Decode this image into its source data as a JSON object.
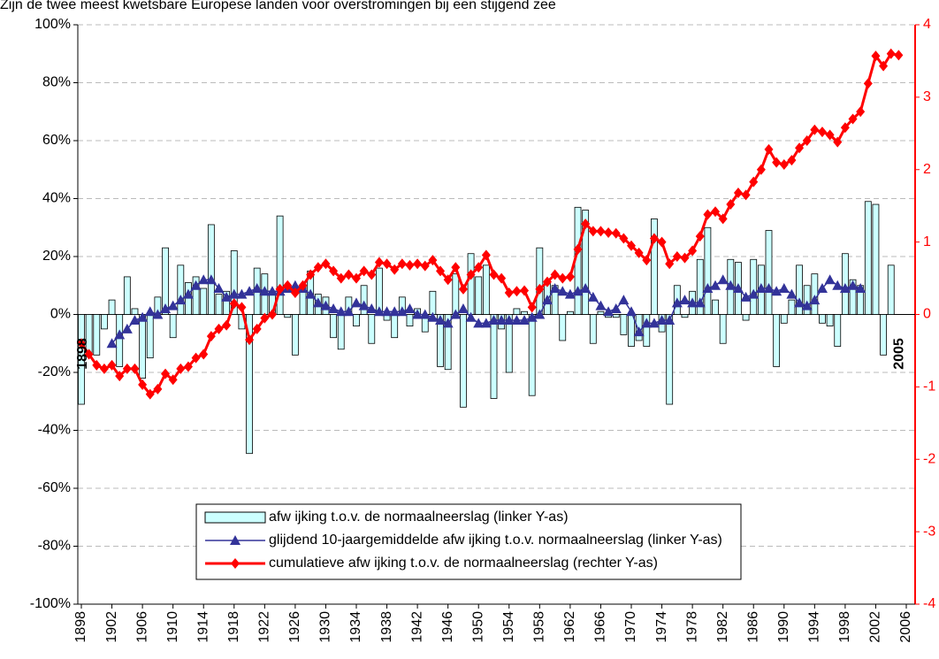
{
  "chart_data": {
    "type": "bar-line",
    "title": "Zijn de twee meest kwetsbare Europese landen voor overstromingen bij een stijgend zee",
    "annotations": [
      "1898",
      "2005"
    ],
    "categories": [
      "1898",
      null,
      null,
      null,
      "1902",
      null,
      null,
      null,
      "1906",
      null,
      null,
      null,
      "1910",
      null,
      null,
      null,
      "1914",
      null,
      null,
      null,
      "1918",
      null,
      null,
      null,
      "1922",
      null,
      null,
      null,
      "1926",
      null,
      null,
      null,
      "1930",
      null,
      null,
      null,
      "1934",
      null,
      null,
      null,
      "1938",
      null,
      null,
      null,
      "1942",
      null,
      null,
      null,
      "1946",
      null,
      null,
      null,
      "1950",
      null,
      null,
      null,
      "1954",
      null,
      null,
      null,
      "1958",
      null,
      null,
      null,
      "1962",
      null,
      null,
      null,
      "1966",
      null,
      null,
      null,
      "1970",
      null,
      null,
      null,
      "1974",
      null,
      null,
      null,
      "1978",
      null,
      null,
      null,
      "1982",
      null,
      null,
      null,
      "1986",
      null,
      null,
      null,
      "1990",
      null,
      null,
      null,
      "1994",
      null,
      null,
      null,
      "1998",
      null,
      null,
      null,
      "2002",
      null,
      null,
      null,
      "2006"
    ],
    "series": [
      {
        "name": "afw ijking t.o.v. de normaalneerslag (linker Y-as)",
        "type": "bar",
        "color": "#ccffff",
        "axis": "y",
        "values": [
          -31,
          -14,
          -14,
          -5,
          5,
          -18,
          13,
          2,
          -22,
          -15,
          6,
          23,
          -8,
          17,
          11,
          13,
          9,
          31,
          7,
          8,
          22,
          -5,
          -48,
          16,
          14,
          8,
          34,
          -1,
          -14,
          10,
          15,
          7,
          6,
          -8,
          -12,
          6,
          -4,
          10,
          -10,
          16,
          -2,
          -8,
          6,
          -4,
          2,
          -6,
          8,
          -18,
          -19,
          14,
          -32,
          21,
          13,
          17,
          -29,
          -5,
          -20,
          2,
          1,
          -28,
          23,
          11,
          10,
          -9,
          1,
          37,
          36,
          -10,
          1,
          -1,
          -1,
          -7,
          -11,
          -9,
          -11,
          33,
          -6,
          -31,
          10,
          -1,
          8,
          19,
          30,
          5,
          -10,
          19,
          18,
          -2,
          19,
          17,
          29,
          -18,
          -3,
          5,
          17,
          10,
          14,
          -3,
          -4,
          -11,
          21,
          12,
          10,
          39,
          38,
          -14,
          17,
          null,
          null
        ]
      },
      {
        "name": "glijdend 10-jaargemiddelde afw ijking t.o.v. normaalneerslag (linker Y-as)",
        "type": "line",
        "marker": "triangle",
        "color": "#333399",
        "axis": "y",
        "values": [
          null,
          null,
          null,
          null,
          -10,
          -7,
          -5,
          -2,
          -1,
          1,
          0,
          2,
          3,
          5,
          7,
          10,
          12,
          12,
          9,
          6,
          7,
          7,
          8,
          9,
          8,
          8,
          8,
          9,
          10,
          9,
          7,
          4,
          3,
          2,
          1,
          1,
          4,
          3,
          2,
          1,
          1,
          1,
          1,
          2,
          0,
          0,
          -1,
          -2,
          -3,
          0,
          2,
          -1,
          -3,
          -3,
          -2,
          -2,
          -2,
          -2,
          -2,
          -1,
          0,
          5,
          9,
          8,
          7,
          8,
          9,
          6,
          3,
          1,
          2,
          5,
          1,
          -6,
          -3,
          -3,
          -2,
          -2,
          4,
          5,
          4,
          4,
          9,
          10,
          12,
          10,
          9,
          6,
          7,
          9,
          9,
          8,
          9,
          7,
          4,
          3,
          5,
          9,
          12,
          10,
          9,
          10,
          9,
          null,
          null,
          null,
          null,
          null,
          null
        ]
      },
      {
        "name": "cumulatieve afw ijking t.o.v. de normaalneerslag (rechter Y-as)",
        "type": "line",
        "marker": "diamond",
        "color": "#ff0000",
        "axis": "y2",
        "values": [
          -0.4,
          -0.55,
          -0.7,
          -0.75,
          -0.7,
          -0.85,
          -0.75,
          -0.75,
          -0.97,
          -1.1,
          -1.03,
          -0.82,
          -0.9,
          -0.75,
          -0.72,
          -0.6,
          -0.55,
          -0.3,
          -0.2,
          -0.15,
          0.15,
          0.1,
          -0.35,
          -0.2,
          -0.05,
          0.0,
          0.35,
          0.4,
          0.3,
          0.4,
          0.55,
          0.65,
          0.7,
          0.6,
          0.5,
          0.55,
          0.5,
          0.6,
          0.55,
          0.72,
          0.7,
          0.62,
          0.7,
          0.68,
          0.7,
          0.67,
          0.75,
          0.6,
          0.48,
          0.65,
          0.35,
          0.55,
          0.65,
          0.82,
          0.55,
          0.5,
          0.3,
          0.32,
          0.33,
          0.1,
          0.35,
          0.45,
          0.55,
          0.5,
          0.52,
          0.9,
          1.25,
          1.15,
          1.15,
          1.13,
          1.12,
          1.05,
          0.95,
          0.85,
          0.75,
          1.05,
          1.0,
          0.7,
          0.8,
          0.78,
          0.88,
          1.08,
          1.38,
          1.42,
          1.32,
          1.52,
          1.68,
          1.65,
          1.83,
          2.0,
          2.28,
          2.1,
          2.07,
          2.13,
          2.3,
          2.4,
          2.55,
          2.52,
          2.48,
          2.38,
          2.58,
          2.7,
          2.8,
          3.19,
          3.57,
          3.43,
          3.6,
          3.58,
          null
        ]
      }
    ],
    "ylim": [
      -100,
      100
    ],
    "yticks": [
      {
        "value": -100,
        "label": "-100%"
      },
      {
        "value": -80,
        "label": "-80%"
      },
      {
        "value": -60,
        "label": "-60%"
      },
      {
        "value": -40,
        "label": "-40%"
      },
      {
        "value": -20,
        "label": "-20%"
      },
      {
        "value": 0,
        "label": "0%"
      },
      {
        "value": 20,
        "label": "20%"
      },
      {
        "value": 40,
        "label": "40%"
      },
      {
        "value": 60,
        "label": "60%"
      },
      {
        "value": 80,
        "label": "80%"
      },
      {
        "value": 100,
        "label": "100%"
      }
    ],
    "y2lim": [
      -4,
      4
    ],
    "y2ticks": [
      -4,
      -3,
      -2,
      -1,
      0,
      1,
      2,
      3,
      4
    ],
    "y2color": "#ff0000",
    "grid": true
  }
}
